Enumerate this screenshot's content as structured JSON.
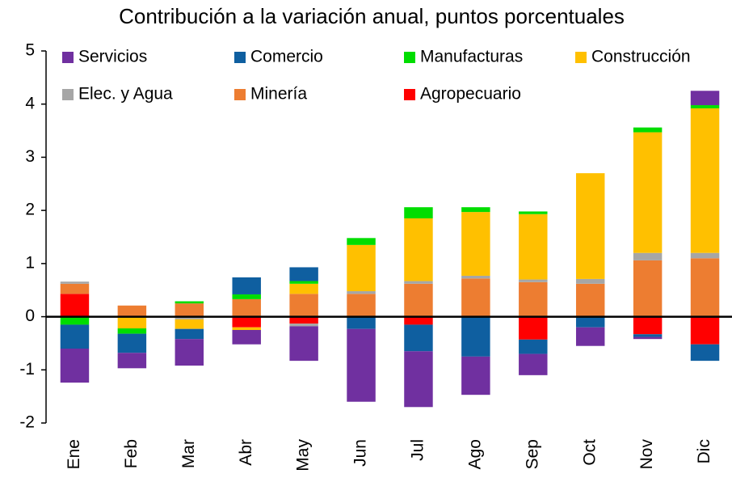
{
  "chart_data": {
    "type": "bar",
    "stacked": true,
    "title": "Contribución a la variación anual, puntos porcentuales",
    "categories": [
      "Ene",
      "Feb",
      "Mar",
      "Abr",
      "May",
      "Jun",
      "Jul",
      "Ago",
      "Sep",
      "Oct",
      "Nov",
      "Dic"
    ],
    "series": [
      {
        "name": "Servicios",
        "color": "#7030a0",
        "values": [
          -0.64,
          -0.29,
          -0.5,
          -0.27,
          -0.65,
          -1.37,
          -1.05,
          -0.72,
          -0.4,
          -0.35,
          -0.04,
          0.27
        ]
      },
      {
        "name": "Comercio",
        "color": "#0f5fa0",
        "values": [
          -0.45,
          -0.36,
          -0.19,
          0.32,
          0.26,
          -0.23,
          -0.5,
          -0.75,
          -0.27,
          -0.2,
          -0.05,
          -0.31
        ]
      },
      {
        "name": "Manufacturas",
        "color": "#00dd00",
        "values": [
          -0.15,
          -0.1,
          0.04,
          0.09,
          0.05,
          0.13,
          0.21,
          0.09,
          0.05,
          0,
          0.09,
          0.06
        ]
      },
      {
        "name": "Construcción",
        "color": "#ffc000",
        "values": [
          0,
          -0.22,
          -0.18,
          -0.05,
          0.19,
          0.87,
          1.18,
          1.2,
          1.23,
          1.99,
          2.27,
          2.72
        ]
      },
      {
        "name": "Elec. y Agua",
        "color": "#a6a6a6",
        "values": [
          0.04,
          0,
          -0.05,
          0,
          -0.05,
          0.05,
          0.05,
          0.05,
          0.05,
          0.09,
          0.14,
          0.1
        ]
      },
      {
        "name": "Minería",
        "color": "#ed7d31",
        "values": [
          0.19,
          0.21,
          0.25,
          0.33,
          0.43,
          0.43,
          0.62,
          0.72,
          0.65,
          0.62,
          1.06,
          1.1
        ]
      },
      {
        "name": "Agropecuario",
        "color": "#ff0000",
        "values": [
          0.43,
          0,
          0,
          -0.2,
          -0.13,
          0,
          -0.15,
          0,
          -0.43,
          0,
          -0.33,
          -0.52
        ]
      }
    ],
    "ylim": [
      -2,
      5
    ],
    "yticks": [
      -2,
      -1,
      0,
      1,
      2,
      3,
      4,
      5
    ],
    "grid": false,
    "legend": "top"
  }
}
